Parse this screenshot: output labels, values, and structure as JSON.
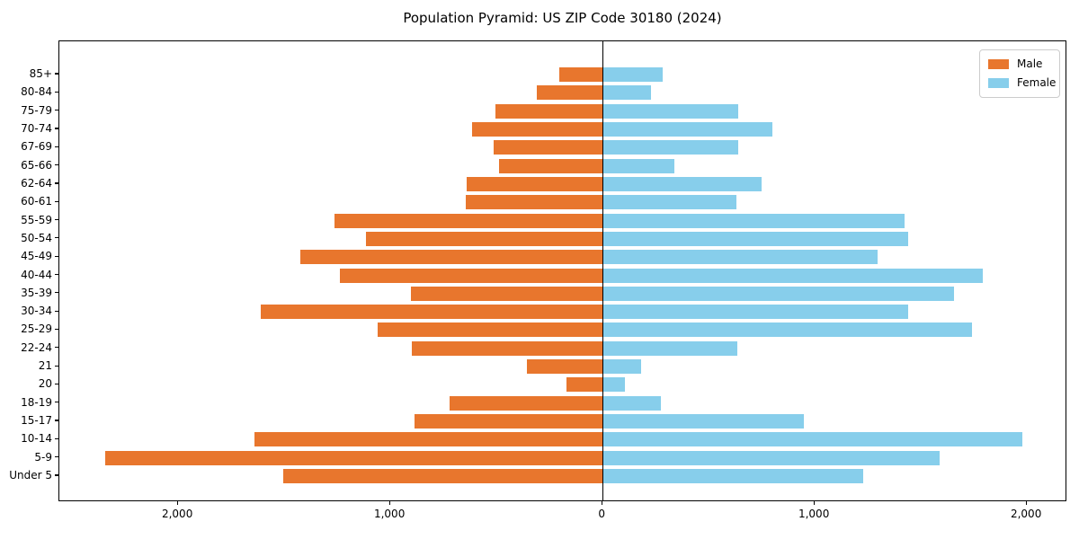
{
  "chart_data": {
    "type": "bar",
    "variant": "population-pyramid",
    "title": "Population Pyramid: US ZIP Code 30180 (2024)",
    "categories": [
      "85+",
      "80-84",
      "75-79",
      "70-74",
      "67-69",
      "65-66",
      "62-64",
      "60-61",
      "55-59",
      "50-54",
      "45-49",
      "40-44",
      "35-39",
      "30-34",
      "25-29",
      "22-24",
      "21",
      "20",
      "18-19",
      "15-17",
      "10-14",
      "5-9",
      "Under 5"
    ],
    "series": [
      {
        "name": "Male",
        "side": "left",
        "color": "#E8762D",
        "values": [
          205,
          310,
          505,
          615,
          515,
          490,
          640,
          645,
          1265,
          1115,
          1425,
          1240,
          905,
          1610,
          1060,
          900,
          355,
          170,
          720,
          885,
          1640,
          2345,
          1505
        ]
      },
      {
        "name": "Female",
        "side": "right",
        "color": "#87CEEB",
        "values": [
          285,
          230,
          640,
          800,
          640,
          340,
          750,
          630,
          1425,
          1440,
          1295,
          1790,
          1655,
          1440,
          1740,
          635,
          180,
          105,
          275,
          950,
          1980,
          1590,
          1230
        ]
      }
    ],
    "x_ticks": [
      {
        "value": -2000,
        "label": "2,000"
      },
      {
        "value": -1000,
        "label": "1,000"
      },
      {
        "value": 0,
        "label": "0"
      },
      {
        "value": 1000,
        "label": "1,000"
      },
      {
        "value": 2000,
        "label": "2,000"
      }
    ],
    "xlim": [
      -2560,
      2190
    ],
    "grid": false,
    "legend": {
      "position": "upper-right",
      "entries": [
        "Male",
        "Female"
      ]
    }
  }
}
